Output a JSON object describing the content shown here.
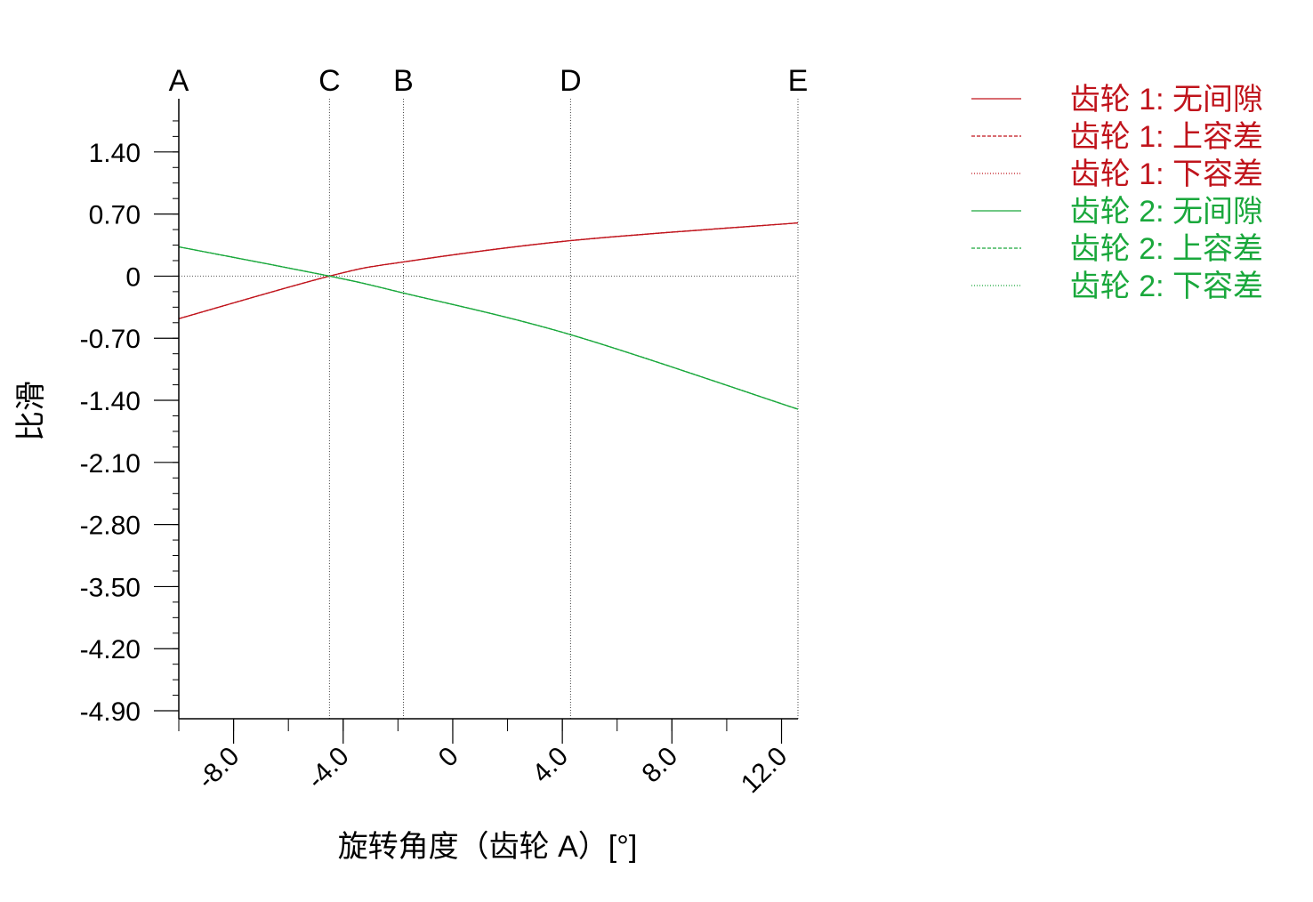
{
  "chart_data": {
    "type": "line",
    "title": "",
    "xlabel": "旋转角度（齿轮 A）[°]",
    "ylabel": "比滑",
    "xlim": [
      -10.0,
      12.6
    ],
    "ylim": [
      -4.99,
      2.0
    ],
    "x_ticks": [
      -8.0,
      -4.0,
      0,
      4.0,
      8.0,
      12.0
    ],
    "x_tick_labels": [
      "-8.0",
      "-4.0",
      "0",
      "4.0",
      "8.0",
      "12.0"
    ],
    "y_ticks": [
      1.4,
      0.7,
      0,
      -0.7,
      -1.4,
      -2.1,
      -2.8,
      -3.5,
      -4.2,
      -4.9
    ],
    "y_tick_labels": [
      "1.40",
      "0.70",
      "0",
      "-0.70",
      "-1.40",
      "-2.10",
      "-2.80",
      "-3.50",
      "-4.20",
      "-4.90"
    ],
    "zero_line": true,
    "markers": [
      {
        "label": "A",
        "x": -10.0
      },
      {
        "label": "C",
        "x": -4.5
      },
      {
        "label": "B",
        "x": -1.8
      },
      {
        "label": "D",
        "x": 4.3
      },
      {
        "label": "E",
        "x": 12.6
      }
    ],
    "legend_position": "top-right",
    "series": [
      {
        "name": "齿轮 1: 无间隙",
        "color": "#c0141c",
        "style": "solid",
        "x": [
          -10.0,
          -4.5,
          -1.8,
          4.3,
          12.6
        ],
        "y": [
          -0.48,
          0.0,
          0.16,
          0.4,
          0.6
        ]
      },
      {
        "name": "齿轮 1: 上容差",
        "color": "#c0141c",
        "style": "dashed",
        "x": [
          -10.0,
          -4.5,
          -1.8,
          4.3,
          12.6
        ],
        "y": [
          -0.48,
          0.0,
          0.16,
          0.4,
          0.6
        ]
      },
      {
        "name": "齿轮 1: 下容差",
        "color": "#c0141c",
        "style": "dotted",
        "x": [
          -10.0,
          -4.5,
          -1.8,
          4.3,
          12.6
        ],
        "y": [
          -0.48,
          0.0,
          0.16,
          0.4,
          0.6
        ]
      },
      {
        "name": "齿轮 2: 无间隙",
        "color": "#1aa83c",
        "style": "solid",
        "x": [
          -10.0,
          -4.5,
          -1.8,
          4.3,
          12.6
        ],
        "y": [
          0.33,
          0.0,
          -0.19,
          -0.66,
          -1.5
        ]
      },
      {
        "name": "齿轮 2: 上容差",
        "color": "#1aa83c",
        "style": "dashed",
        "x": [
          -10.0,
          -4.5,
          -1.8,
          4.3,
          12.6
        ],
        "y": [
          0.33,
          0.0,
          -0.19,
          -0.66,
          -1.5
        ]
      },
      {
        "name": "齿轮 2: 下容差",
        "color": "#1aa83c",
        "style": "dotted",
        "x": [
          -10.0,
          -4.5,
          -1.8,
          4.3,
          12.6
        ],
        "y": [
          0.33,
          0.0,
          -0.19,
          -0.66,
          -1.5
        ]
      }
    ]
  }
}
